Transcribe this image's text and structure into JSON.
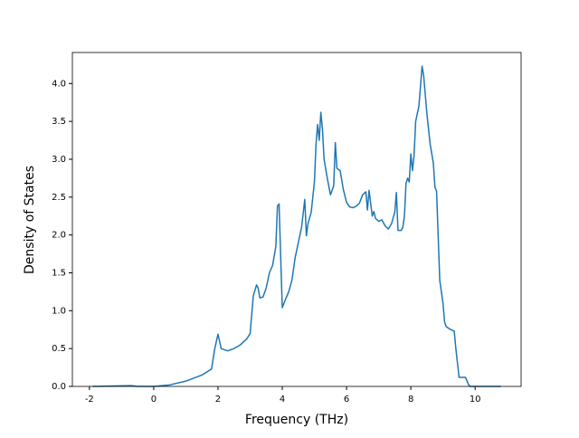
{
  "chart_data": {
    "type": "line",
    "x_label": "Frequency (THz)",
    "y_label": "Density of States",
    "x": [
      -1.9,
      -0.7,
      -0.5,
      0,
      0.5,
      1.0,
      1.5,
      1.8,
      1.9,
      2.0,
      2.1,
      2.3,
      2.5,
      2.7,
      2.9,
      3.0,
      3.1,
      3.2,
      3.25,
      3.3,
      3.4,
      3.5,
      3.6,
      3.7,
      3.8,
      3.85,
      3.9,
      4.0,
      4.1,
      4.2,
      4.3,
      4.4,
      4.5,
      4.6,
      4.7,
      4.75,
      4.8,
      4.9,
      5.0,
      5.05,
      5.1,
      5.15,
      5.2,
      5.25,
      5.3,
      5.4,
      5.5,
      5.6,
      5.65,
      5.7,
      5.8,
      5.9,
      6.0,
      6.1,
      6.2,
      6.3,
      6.4,
      6.5,
      6.6,
      6.65,
      6.7,
      6.8,
      6.85,
      6.9,
      7.0,
      7.1,
      7.2,
      7.3,
      7.4,
      7.5,
      7.55,
      7.6,
      7.7,
      7.75,
      7.8,
      7.85,
      7.9,
      7.95,
      8.0,
      8.05,
      8.1,
      8.15,
      8.25,
      8.35,
      8.4,
      8.5,
      8.6,
      8.7,
      8.75,
      8.8,
      8.9,
      9.0,
      9.05,
      9.1,
      9.2,
      9.35,
      9.4,
      9.5,
      9.7,
      9.8,
      9.85,
      10.8
    ],
    "series": [
      {
        "name": "DOS",
        "color": "#1f77b4",
        "values": [
          0,
          0.01,
          0,
          0,
          0.02,
          0.07,
          0.15,
          0.23,
          0.5,
          0.69,
          0.5,
          0.47,
          0.5,
          0.55,
          0.63,
          0.7,
          1.2,
          1.34,
          1.3,
          1.17,
          1.18,
          1.3,
          1.5,
          1.6,
          1.85,
          2.38,
          2.41,
          1.04,
          1.15,
          1.25,
          1.4,
          1.7,
          1.9,
          2.1,
          2.47,
          1.99,
          2.15,
          2.3,
          2.7,
          3.2,
          3.46,
          3.25,
          3.62,
          3.4,
          3.0,
          2.75,
          2.53,
          2.65,
          3.22,
          2.88,
          2.85,
          2.6,
          2.43,
          2.37,
          2.36,
          2.38,
          2.42,
          2.53,
          2.57,
          2.33,
          2.59,
          2.25,
          2.31,
          2.22,
          2.18,
          2.2,
          2.12,
          2.08,
          2.15,
          2.3,
          2.56,
          2.06,
          2.06,
          2.1,
          2.25,
          2.68,
          2.75,
          2.7,
          3.07,
          2.85,
          3.05,
          3.5,
          3.7,
          4.23,
          4.1,
          3.6,
          3.2,
          2.95,
          2.63,
          2.58,
          1.4,
          1.1,
          0.85,
          0.79,
          0.76,
          0.73,
          0.5,
          0.12,
          0.12,
          0.02,
          0,
          0
        ]
      }
    ],
    "xlim": [
      -2.53,
      11.43
    ],
    "ylim": [
      0,
      4.41
    ],
    "xticks": [
      -2,
      0,
      2,
      4,
      6,
      8,
      10
    ],
    "yticks": [
      {
        "value": 0,
        "label": "0.0"
      },
      {
        "value": 0.5,
        "label": "0.5"
      },
      {
        "value": 1,
        "label": "1.0"
      },
      {
        "value": 1.5,
        "label": "1.5"
      },
      {
        "value": 2,
        "label": "2.0"
      },
      {
        "value": 2.5,
        "label": "2.5"
      },
      {
        "value": 3,
        "label": "3.0"
      },
      {
        "value": 3.5,
        "label": "3.5"
      },
      {
        "value": 4,
        "label": "4.0"
      }
    ]
  }
}
